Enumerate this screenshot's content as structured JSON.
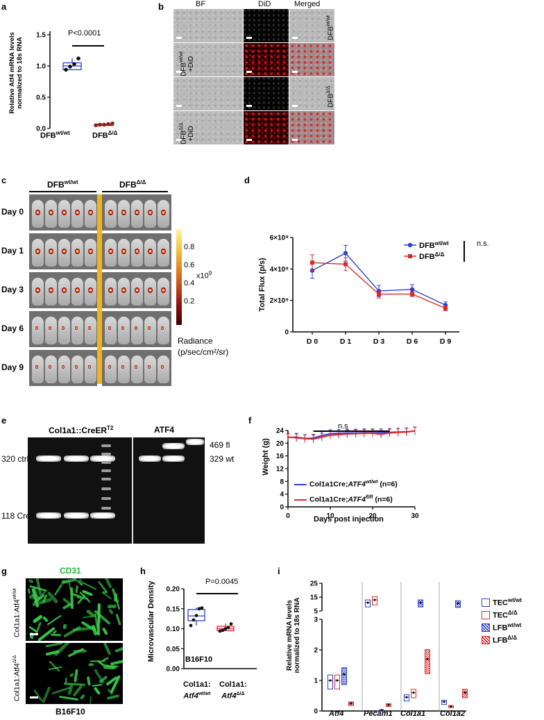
{
  "panel_letters": [
    "a",
    "b",
    "c",
    "d",
    "e",
    "f",
    "g",
    "h",
    "i"
  ],
  "a": {
    "ylabel_line1": "Relative Atf4 mRNA levels",
    "ylabel_line2": "normalized to 18s RNA",
    "yticks": [
      "0.0",
      "0.5",
      "1.0",
      "1.5"
    ],
    "cat1": "DFB",
    "cat1_sup": "wt/wt",
    "cat2": "DFB",
    "cat2_sup": "Δ/Δ",
    "pvalue": "P<0.0001"
  },
  "b": {
    "columns": [
      "BF",
      "DiD",
      "Merged"
    ],
    "rows": [
      {
        "name": "DFB",
        "sup": "wt/wt",
        "extra": ""
      },
      {
        "name": "DFB",
        "sup": "wt/wt",
        "extra": "+DiD"
      },
      {
        "name": "DFB",
        "sup": "Δ/Δ",
        "extra": ""
      },
      {
        "name": "DFB",
        "sup": "Δ/Δ",
        "extra": "+DiD"
      }
    ]
  },
  "c": {
    "group1": "DFB",
    "group1_sup": "wt/wt",
    "group2": "DFB",
    "group2_sup": "Δ/Δ",
    "days": [
      "Day 0",
      "Day 1",
      "Day 3",
      "Day 6",
      "Day 9"
    ],
    "colorbar_ticks": [
      "0.8",
      "0.6",
      "0.4",
      "0.2"
    ],
    "colorbar_unit": "x10",
    "colorbar_unit_sup": "9",
    "radiance_line1": "Radiance",
    "radiance_line2": "(p/sec/cm²/sr)"
  },
  "e": {
    "left_title": "Col1a1::CreER",
    "left_title_sup": "T2",
    "right_title": "ATF4",
    "left_bands": [
      "320 ctrl",
      "118 Cre"
    ],
    "right_bands": [
      "469 fl",
      "329 wt"
    ]
  },
  "f": {
    "ylabel": "Weight (g)",
    "xlabel": "Days post injection",
    "sig": "n.s",
    "legend1_prefix": "Col1a1Cre;",
    "legend1_gene": "ATF4",
    "legend1_sup": "wt/wt",
    "legend1_n": " (n=6)",
    "legend2_prefix": "Col1a1Cre;",
    "legend2_gene": "ATF4",
    "legend2_sup": "fl/fl",
    "legend2_n": " (n=6)"
  },
  "g": {
    "title": "CD31",
    "row1": "Col1a1:Atf4",
    "row1_sup": "wt/wt",
    "row2": "Col1a1:Atf4",
    "row2_sup": "Δ/Δ",
    "footer": "B16F10"
  },
  "h": {
    "ylabel": "Microvascular Density",
    "inside_label": "B16F10",
    "cat1_line1": "Col1a1:",
    "cat1_line2": "Atf4",
    "cat1_sup": "wt/wt",
    "cat2_line1": "Col1a1:",
    "cat2_line2": "Atf4",
    "cat2_sup": "Δ/Δ",
    "pvalue": "P=0.0045"
  },
  "i": {
    "ylabel_line1": "Relative mRNA levels",
    "ylabel_line2": "normalized to 18s RNA",
    "upper_ticks": [
      "25",
      "15",
      "5"
    ],
    "lower_ticks": [
      "3",
      "2",
      "1",
      "0"
    ],
    "legend": [
      {
        "name": "TEC",
        "sup": "wt/wt",
        "color": "#2b3fd1",
        "style": "open"
      },
      {
        "name": "TEC",
        "sup": "Δ/Δ",
        "color": "#d92b2b",
        "style": "open"
      },
      {
        "name": "LFB",
        "sup": "wt/wt",
        "color": "#2b3fd1",
        "style": "hatched"
      },
      {
        "name": "LFB",
        "sup": "Δ/Δ",
        "color": "#d92b2b",
        "style": "hatched"
      }
    ]
  },
  "chart_data": [
    {
      "id": "a",
      "type": "box",
      "categories": [
        "DFBwt/wt",
        "DFBΔ/Δ"
      ],
      "series": [
        {
          "category": "DFBwt/wt",
          "min": 0.93,
          "q1": 0.94,
          "median": 1.0,
          "q3": 1.05,
          "max": 1.12,
          "points": [
            0.94,
            0.99,
            1.03,
            1.12
          ]
        },
        {
          "category": "DFBΔ/Δ",
          "min": 0.05,
          "q1": 0.05,
          "median": 0.06,
          "q3": 0.07,
          "max": 0.08,
          "points": [
            0.05,
            0.06,
            0.06,
            0.07,
            0.08
          ]
        }
      ],
      "ylim": [
        0,
        1.5
      ],
      "colors": [
        "#2b3fd1",
        "#c21b1b"
      ]
    },
    {
      "id": "d",
      "type": "line",
      "ylabel": "Total Flux (p/s)",
      "categories": [
        "D 0",
        "D 1",
        "D 3",
        "D 6",
        "D 9"
      ],
      "yticks": [
        "0",
        "2×10⁹",
        "4×10⁹",
        "6×10⁹"
      ],
      "ylim": [
        0,
        6000000000.0
      ],
      "series": [
        {
          "name": "DFBwt/wt",
          "color": "#2b3fd1",
          "values": [
            3900000000.0,
            5000000000.0,
            2600000000.0,
            2700000000.0,
            1700000000.0
          ],
          "errors": [
            500000000.0,
            500000000.0,
            350000000.0,
            300000000.0,
            200000000.0
          ]
        },
        {
          "name": "DFBΔ/Δ",
          "color": "#d92b2b",
          "values": [
            4400000000.0,
            4300000000.0,
            2400000000.0,
            2400000000.0,
            1500000000.0
          ],
          "errors": [
            500000000.0,
            400000000.0,
            250000000.0,
            150000000.0,
            150000000.0
          ]
        }
      ],
      "annotation": "n.s."
    },
    {
      "id": "f",
      "type": "line",
      "xlim": [
        0,
        30
      ],
      "ylim": [
        0,
        24
      ],
      "xticks": [
        0,
        10,
        20,
        30
      ],
      "yticks": [
        0,
        4,
        8,
        12,
        16,
        20,
        24
      ],
      "x": [
        0,
        2,
        4,
        6,
        8,
        10,
        12,
        14,
        16,
        18,
        20,
        22,
        24,
        26,
        28,
        30
      ],
      "series": [
        {
          "name": "wt/wt",
          "color": "#2b3fd1",
          "values": [
            21.8,
            21.9,
            21.5,
            21.6,
            22.4,
            23.0,
            23.1,
            23.2,
            23.2,
            23.3,
            23.3,
            23.3,
            23.4,
            23.5,
            23.6,
            23.8
          ]
        },
        {
          "name": "fl/fl",
          "color": "#d92b2b",
          "values": [
            21.9,
            21.7,
            21.4,
            21.3,
            21.9,
            22.5,
            22.7,
            22.9,
            23.0,
            23.1,
            23.1,
            22.8,
            23.2,
            23.4,
            23.5,
            23.9
          ]
        }
      ],
      "error": 1.2
    },
    {
      "id": "h",
      "type": "box",
      "categories": [
        "wt/wt",
        "Δ/Δ"
      ],
      "ylim": [
        0,
        0.2
      ],
      "yticks": [
        "0.00",
        "0.05",
        "0.10",
        "0.15",
        "0.20"
      ],
      "series": [
        {
          "category": "wt/wt",
          "min": 0.108,
          "q1": 0.12,
          "median": 0.132,
          "q3": 0.148,
          "max": 0.153,
          "points": [
            0.108,
            0.122,
            0.133,
            0.15,
            0.152
          ]
        },
        {
          "category": "Δ/Δ",
          "min": 0.094,
          "q1": 0.095,
          "median": 0.1,
          "q3": 0.106,
          "max": 0.113,
          "points": [
            0.094,
            0.096,
            0.1,
            0.103,
            0.112
          ]
        }
      ],
      "colors": [
        "#2b3fd1",
        "#d92b2b"
      ]
    },
    {
      "id": "i",
      "type": "box",
      "categories": [
        "Atf4",
        "Pecam1",
        "Col1a1",
        "Col1a2"
      ],
      "series": [
        {
          "name": "TECwt/wt",
          "values": [
            1.0,
            11.0,
            0.45,
            0.3
          ]
        },
        {
          "name": "TECΔ/Δ",
          "values": [
            1.0,
            13.0,
            0.6,
            0.15
          ]
        },
        {
          "name": "LFBwt/wt",
          "values": [
            1.2,
            0.03,
            11.0,
            10.5
          ]
        },
        {
          "name": "LFBΔ/Δ",
          "values": [
            0.25,
            0.2,
            1.7,
            0.6
          ]
        }
      ]
    }
  ]
}
